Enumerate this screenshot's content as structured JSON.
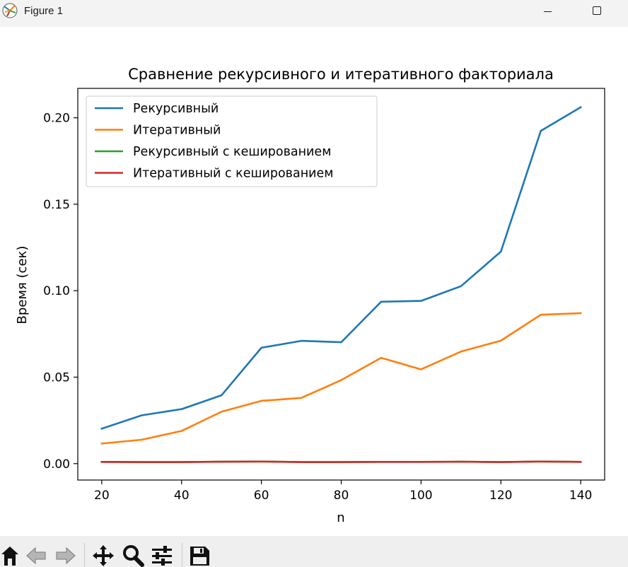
{
  "window": {
    "title": "Figure 1",
    "icon": "matplotlib-icon"
  },
  "toolbar": {
    "items": [
      {
        "name": "home-icon"
      },
      {
        "name": "back-arrow-icon"
      },
      {
        "name": "forward-arrow-icon"
      },
      {
        "name": "pan-move-icon"
      },
      {
        "name": "zoom-magnifier-icon"
      },
      {
        "name": "configure-subplots-icon"
      },
      {
        "name": "save-floppy-icon"
      }
    ]
  },
  "chart_data": {
    "type": "line",
    "title": "Сравнение рекурсивного и итеративного факториала",
    "xlabel": "n",
    "ylabel": "Время (сек)",
    "xlim": [
      14,
      146
    ],
    "ylim": [
      -0.0095,
      0.217
    ],
    "x_ticks": [
      20,
      40,
      60,
      80,
      100,
      120,
      140
    ],
    "y_ticks": [
      0.0,
      0.05,
      0.1,
      0.15,
      0.2
    ],
    "y_tick_labels": [
      "0.00",
      "0.05",
      "0.10",
      "0.15",
      "0.20"
    ],
    "x": [
      20,
      30,
      40,
      50,
      60,
      70,
      80,
      90,
      100,
      110,
      120,
      130,
      140
    ],
    "legend_position": "upper-left",
    "grid": false,
    "series": [
      {
        "name": "Рекурсивный",
        "color": "#1f77b4",
        "values": [
          0.0202,
          0.0279,
          0.0315,
          0.0395,
          0.067,
          0.071,
          0.0702,
          0.0936,
          0.0941,
          0.1026,
          0.1226,
          0.1924,
          0.2061
        ]
      },
      {
        "name": "Итеративный",
        "color": "#ff7f0e",
        "values": [
          0.0116,
          0.0138,
          0.0189,
          0.03,
          0.0363,
          0.038,
          0.0483,
          0.0612,
          0.0545,
          0.0648,
          0.0711,
          0.0861,
          0.087
        ]
      },
      {
        "name": "Рекурсивный с кешированием",
        "color": "#2ca02c",
        "values": [
          0.001,
          0.0009,
          0.0009,
          0.0011,
          0.0012,
          0.0009,
          0.0009,
          0.001,
          0.001,
          0.0011,
          0.0009,
          0.0012,
          0.001
        ]
      },
      {
        "name": "Итеративный с кешированием",
        "color": "#d62728",
        "values": [
          0.001,
          0.0009,
          0.0009,
          0.0011,
          0.0012,
          0.0009,
          0.0009,
          0.001,
          0.001,
          0.0011,
          0.0009,
          0.0012,
          0.001
        ]
      }
    ]
  }
}
